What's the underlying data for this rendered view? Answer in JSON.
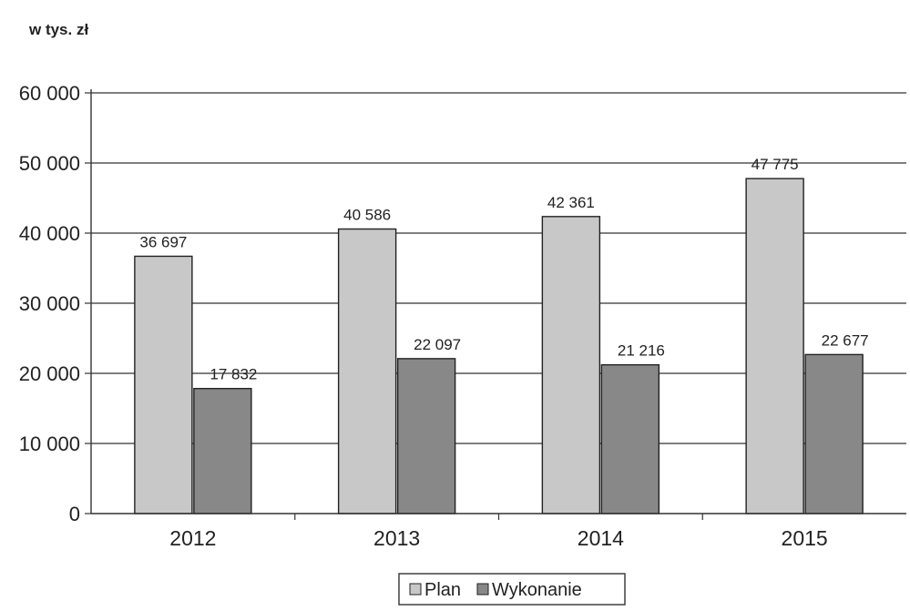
{
  "chart_data": {
    "type": "bar",
    "unit_label": "w tys. zł",
    "categories": [
      "2012",
      "2013",
      "2014",
      "2015"
    ],
    "series": [
      {
        "name": "Plan",
        "values": [
          36697,
          40586,
          42361,
          47775
        ],
        "value_labels": [
          "36 697",
          "40 586",
          "42 361",
          "47 775"
        ],
        "color": "#c8c8c8"
      },
      {
        "name": "Wykonanie",
        "values": [
          17832,
          22097,
          21216,
          22677
        ],
        "value_labels": [
          "17 832",
          "22 097",
          "21 216",
          "22 677"
        ],
        "color": "#888888"
      }
    ],
    "ylim": [
      0,
      60000
    ],
    "y_ticks": [
      0,
      10000,
      20000,
      30000,
      40000,
      50000,
      60000
    ],
    "y_tick_labels": [
      "0",
      "10 000",
      "20 000",
      "30 000",
      "40 000",
      "50 000",
      "60 000"
    ],
    "grid": true,
    "legend_position": "bottom-center"
  }
}
